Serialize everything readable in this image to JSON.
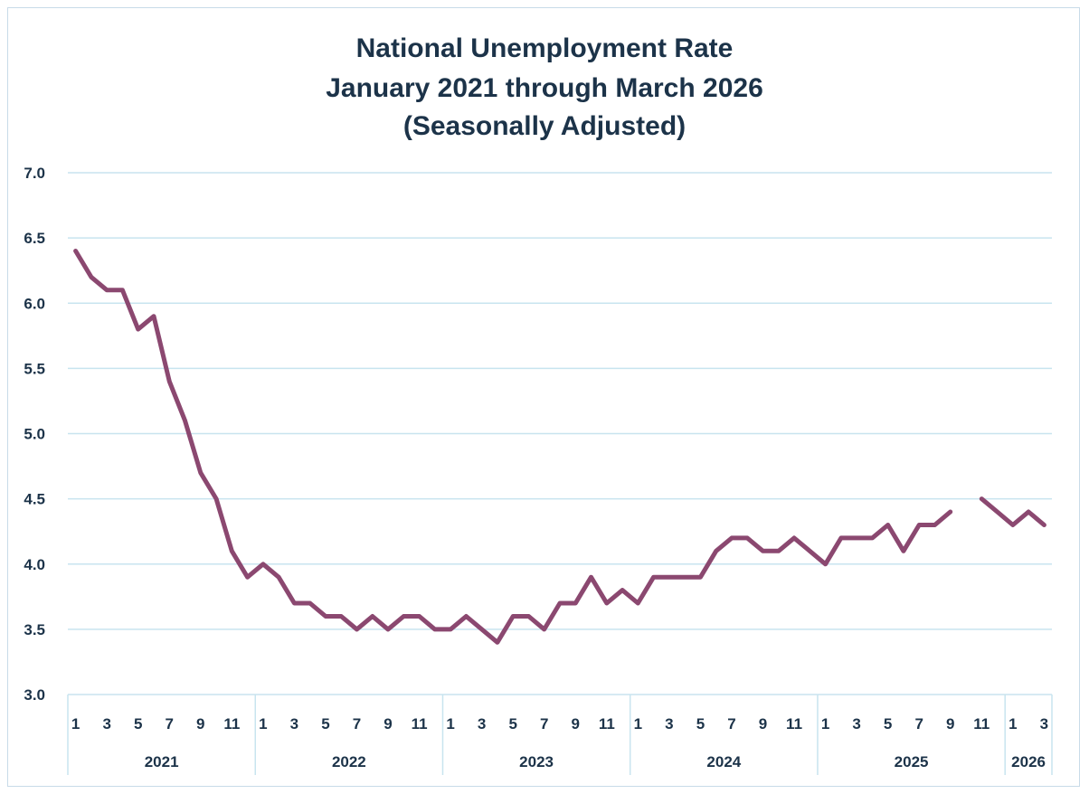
{
  "chart_data": {
    "type": "line",
    "title_lines": [
      "National Unemployment Rate",
      "January 2021 through March 2026",
      "(Seasonally Adjusted)"
    ],
    "ylim": [
      3.0,
      7.0
    ],
    "yticks": [
      "3.0",
      "3.5",
      "4.0",
      "4.5",
      "5.0",
      "5.5",
      "6.0",
      "6.5",
      "7.0"
    ],
    "grid": true,
    "colors": {
      "line": "#8b4870",
      "grid": "#c8e4ef",
      "text": "#1c3349"
    },
    "year_groups": [
      {
        "year": "2021",
        "months": 12
      },
      {
        "year": "2022",
        "months": 12
      },
      {
        "year": "2023",
        "months": 12
      },
      {
        "year": "2024",
        "months": 12
      },
      {
        "year": "2025",
        "months": 12
      },
      {
        "year": "2026",
        "months": 3
      }
    ],
    "month_ticks": [
      "1",
      "3",
      "5",
      "7",
      "9",
      "11"
    ],
    "series": [
      {
        "values": [
          6.4,
          6.2,
          6.1,
          6.1,
          5.8,
          5.9,
          5.4,
          5.1,
          4.7,
          4.5,
          4.1,
          3.9,
          4.0,
          3.9,
          3.7,
          3.7,
          3.6,
          3.6,
          3.5,
          3.6,
          3.5,
          3.6,
          3.6,
          3.5,
          3.5,
          3.6,
          3.5,
          3.4,
          3.6,
          3.6,
          3.5,
          3.7,
          3.7,
          3.9,
          3.7,
          3.8,
          3.7,
          3.9,
          3.9,
          3.9,
          3.9,
          4.1,
          4.2,
          4.2,
          4.1,
          4.1,
          4.2,
          4.1,
          4.0,
          4.2,
          4.2,
          4.2,
          4.3,
          4.1,
          4.3,
          4.3,
          4.4,
          null,
          4.5,
          4.4,
          4.3,
          4.4,
          4.3
        ]
      }
    ]
  }
}
